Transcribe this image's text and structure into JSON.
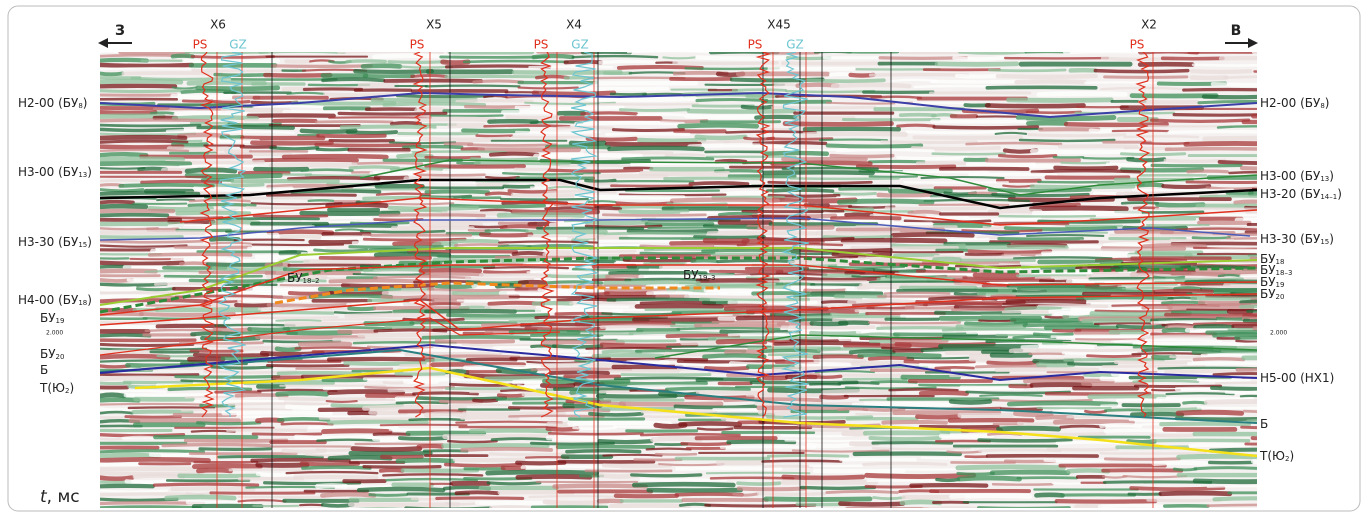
{
  "direction": {
    "left": "З",
    "right": "В"
  },
  "wells": [
    {
      "name": "X6",
      "logs": [
        "PS",
        "GZ"
      ]
    },
    {
      "name": "X5",
      "logs": [
        "PS"
      ]
    },
    {
      "name": "X4",
      "logs": [
        "PS",
        "GZ"
      ]
    },
    {
      "name": "X45",
      "logs": [
        "PS",
        "GZ"
      ]
    },
    {
      "name": "X2",
      "logs": [
        "PS"
      ]
    }
  ],
  "horizons_left": [
    {
      "prefix": "Н2-00 (БУ",
      "sub": "8",
      "suffix": ")"
    },
    {
      "prefix": "Н3-00 (БУ",
      "sub": "13",
      "suffix": ")"
    },
    {
      "prefix": "Н3-30 (БУ",
      "sub": "15",
      "suffix": ")"
    },
    {
      "prefix": "Н4-00 (БУ",
      "sub": "18",
      "suffix": ")"
    },
    {
      "prefix": "БУ",
      "sub": "19"
    },
    {
      "prefix": "БУ",
      "sub": "20"
    },
    {
      "prefix": "Б"
    },
    {
      "prefix": "Т(Ю",
      "sub": "2",
      "suffix": ")"
    }
  ],
  "horizons_right": [
    {
      "prefix": "Н2-00 (БУ",
      "sub": "8",
      "suffix": ")"
    },
    {
      "prefix": "Н3-00 (БУ",
      "sub": "13",
      "suffix": ")"
    },
    {
      "prefix": "Н3-20 (БУ",
      "sub": "14–1",
      "suffix": ")"
    },
    {
      "prefix": "Н3-30 (БУ",
      "sub": "15",
      "suffix": ")"
    },
    {
      "prefix": "БУ",
      "sub": "18"
    },
    {
      "prefix": "БУ",
      "sub": "18–3"
    },
    {
      "prefix": "БУ",
      "sub": "19"
    },
    {
      "prefix": "БУ",
      "sub": "20"
    },
    {
      "prefix": "Н5-00 (НХ1)"
    },
    {
      "prefix": "Б"
    },
    {
      "prefix": "Т(Ю",
      "sub": "2",
      "suffix": ")"
    }
  ],
  "inline_labels": [
    {
      "prefix": "БУ",
      "sub": "18–2"
    },
    {
      "prefix": "БУ",
      "sub": "19–3"
    }
  ],
  "time_marks": {
    "left": "2.000",
    "right": "2.000"
  },
  "axis_label": {
    "variable": "t",
    "unit": ", мс"
  }
}
